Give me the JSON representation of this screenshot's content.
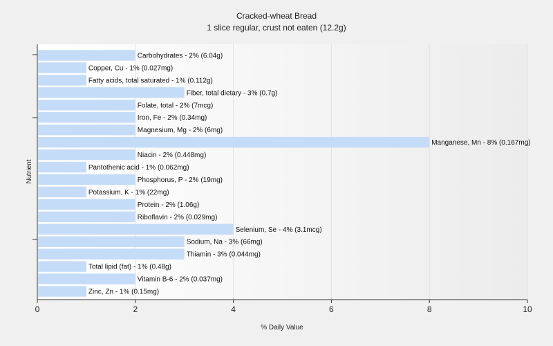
{
  "chart_data": {
    "type": "bar",
    "orientation": "horizontal",
    "title": "Cracked-wheat Bread",
    "subtitle": "1 slice regular, crust not eaten (12.2g)",
    "xlabel": "% Daily Value",
    "ylabel": "Nutrient",
    "xlim": [
      0,
      10
    ],
    "xticks": [
      0,
      2,
      4,
      6,
      8,
      10
    ],
    "grid": true,
    "bar_color": "#c5dcf8",
    "categories": [
      "Carbohydrates",
      "Copper, Cu",
      "Fatty acids, total saturated",
      "Fiber, total dietary",
      "Folate, total",
      "Iron, Fe",
      "Magnesium, Mg",
      "Manganese, Mn",
      "Niacin",
      "Pantothenic acid",
      "Phosphorus, P",
      "Potassium, K",
      "Protein",
      "Riboflavin",
      "Selenium, Se",
      "Sodium, Na",
      "Thiamin",
      "Total lipid (fat)",
      "Vitamin B-6",
      "Zinc, Zn"
    ],
    "values": [
      2,
      1,
      1,
      3,
      2,
      2,
      2,
      8,
      2,
      1,
      2,
      1,
      2,
      2,
      4,
      3,
      3,
      1,
      2,
      1
    ],
    "labels": [
      "Carbohydrates - 2% (6.04g)",
      "Copper, Cu - 1% (0.027mg)",
      "Fatty acids, total saturated - 1% (0.112g)",
      "Fiber, total dietary - 3% (0.7g)",
      "Folate, total - 2% (7mcg)",
      "Iron, Fe - 2% (0.34mg)",
      "Magnesium, Mg - 2% (6mg)",
      "Manganese, Mn - 8% (0.167mg)",
      "Niacin - 2% (0.448mg)",
      "Pantothenic acid - 1% (0.062mg)",
      "Phosphorus, P - 2% (19mg)",
      "Potassium, K - 1% (22mg)",
      "Protein - 2% (1.06g)",
      "Riboflavin - 2% (0.029mg)",
      "Selenium, Se - 4% (3.1mcg)",
      "Sodium, Na - 3% (66mg)",
      "Thiamin - 3% (0.044mg)",
      "Total lipid (fat) - 1% (0.48g)",
      "Vitamin B-6 - 2% (0.037mg)",
      "Zinc, Zn - 1% (0.15mg)"
    ]
  }
}
